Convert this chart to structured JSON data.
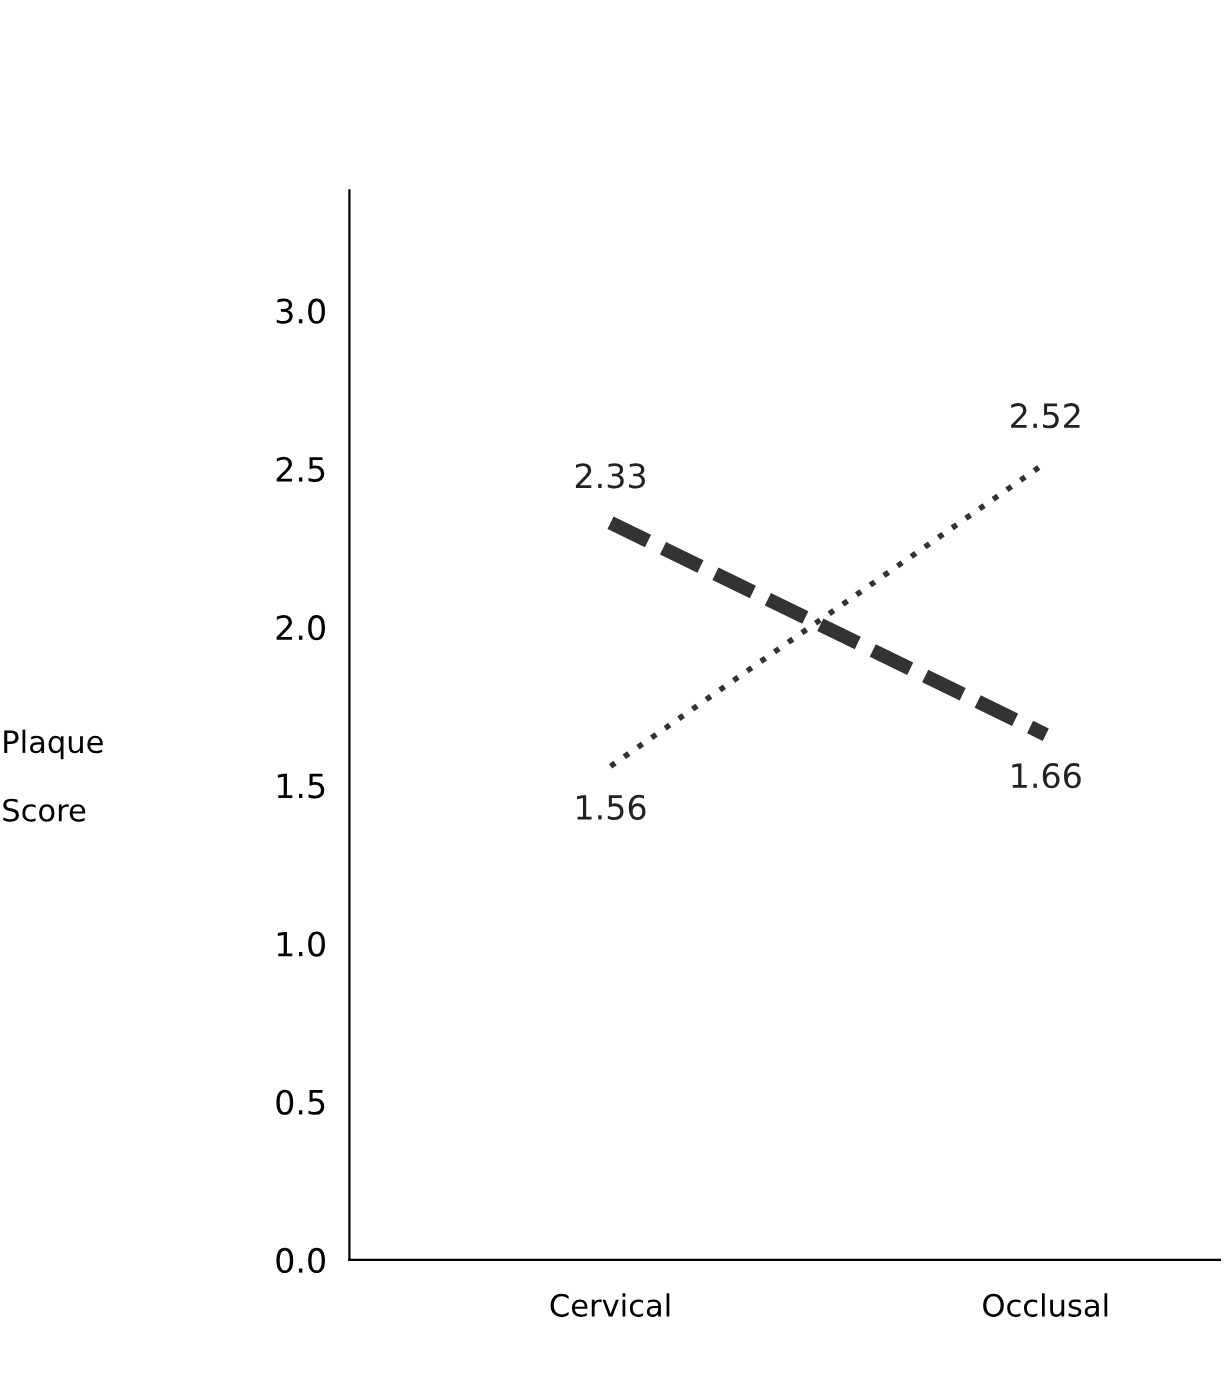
{
  "chart_data": {
    "type": "line",
    "ylabel": "Plaque\n\nScore",
    "categories": [
      "Cervical",
      "Occlusal"
    ],
    "series": [
      {
        "color": "#333333",
        "line_style": "dashed",
        "values": [
          2.33,
          1.66
        ],
        "value_labels": [
          "2.33",
          "1.66"
        ]
      },
      {
        "color": "#333333",
        "line_style": "dotted",
        "values": [
          1.56,
          2.52
        ],
        "value_labels": [
          "1.56",
          "2.52"
        ]
      }
    ],
    "ylim": [
      0,
      3.38
    ],
    "yticks": [
      {
        "value": 0,
        "label": "0.0"
      },
      {
        "value": 0.5,
        "label": "0.5"
      },
      {
        "value": 1,
        "label": "1.0"
      },
      {
        "value": 1.5,
        "label": "1.5"
      },
      {
        "value": 2,
        "label": "2.0"
      },
      {
        "value": 2.5,
        "label": "2.5"
      },
      {
        "value": 3,
        "label": "3.0"
      }
    ],
    "grid": false,
    "legend": false,
    "marker": "none"
  }
}
